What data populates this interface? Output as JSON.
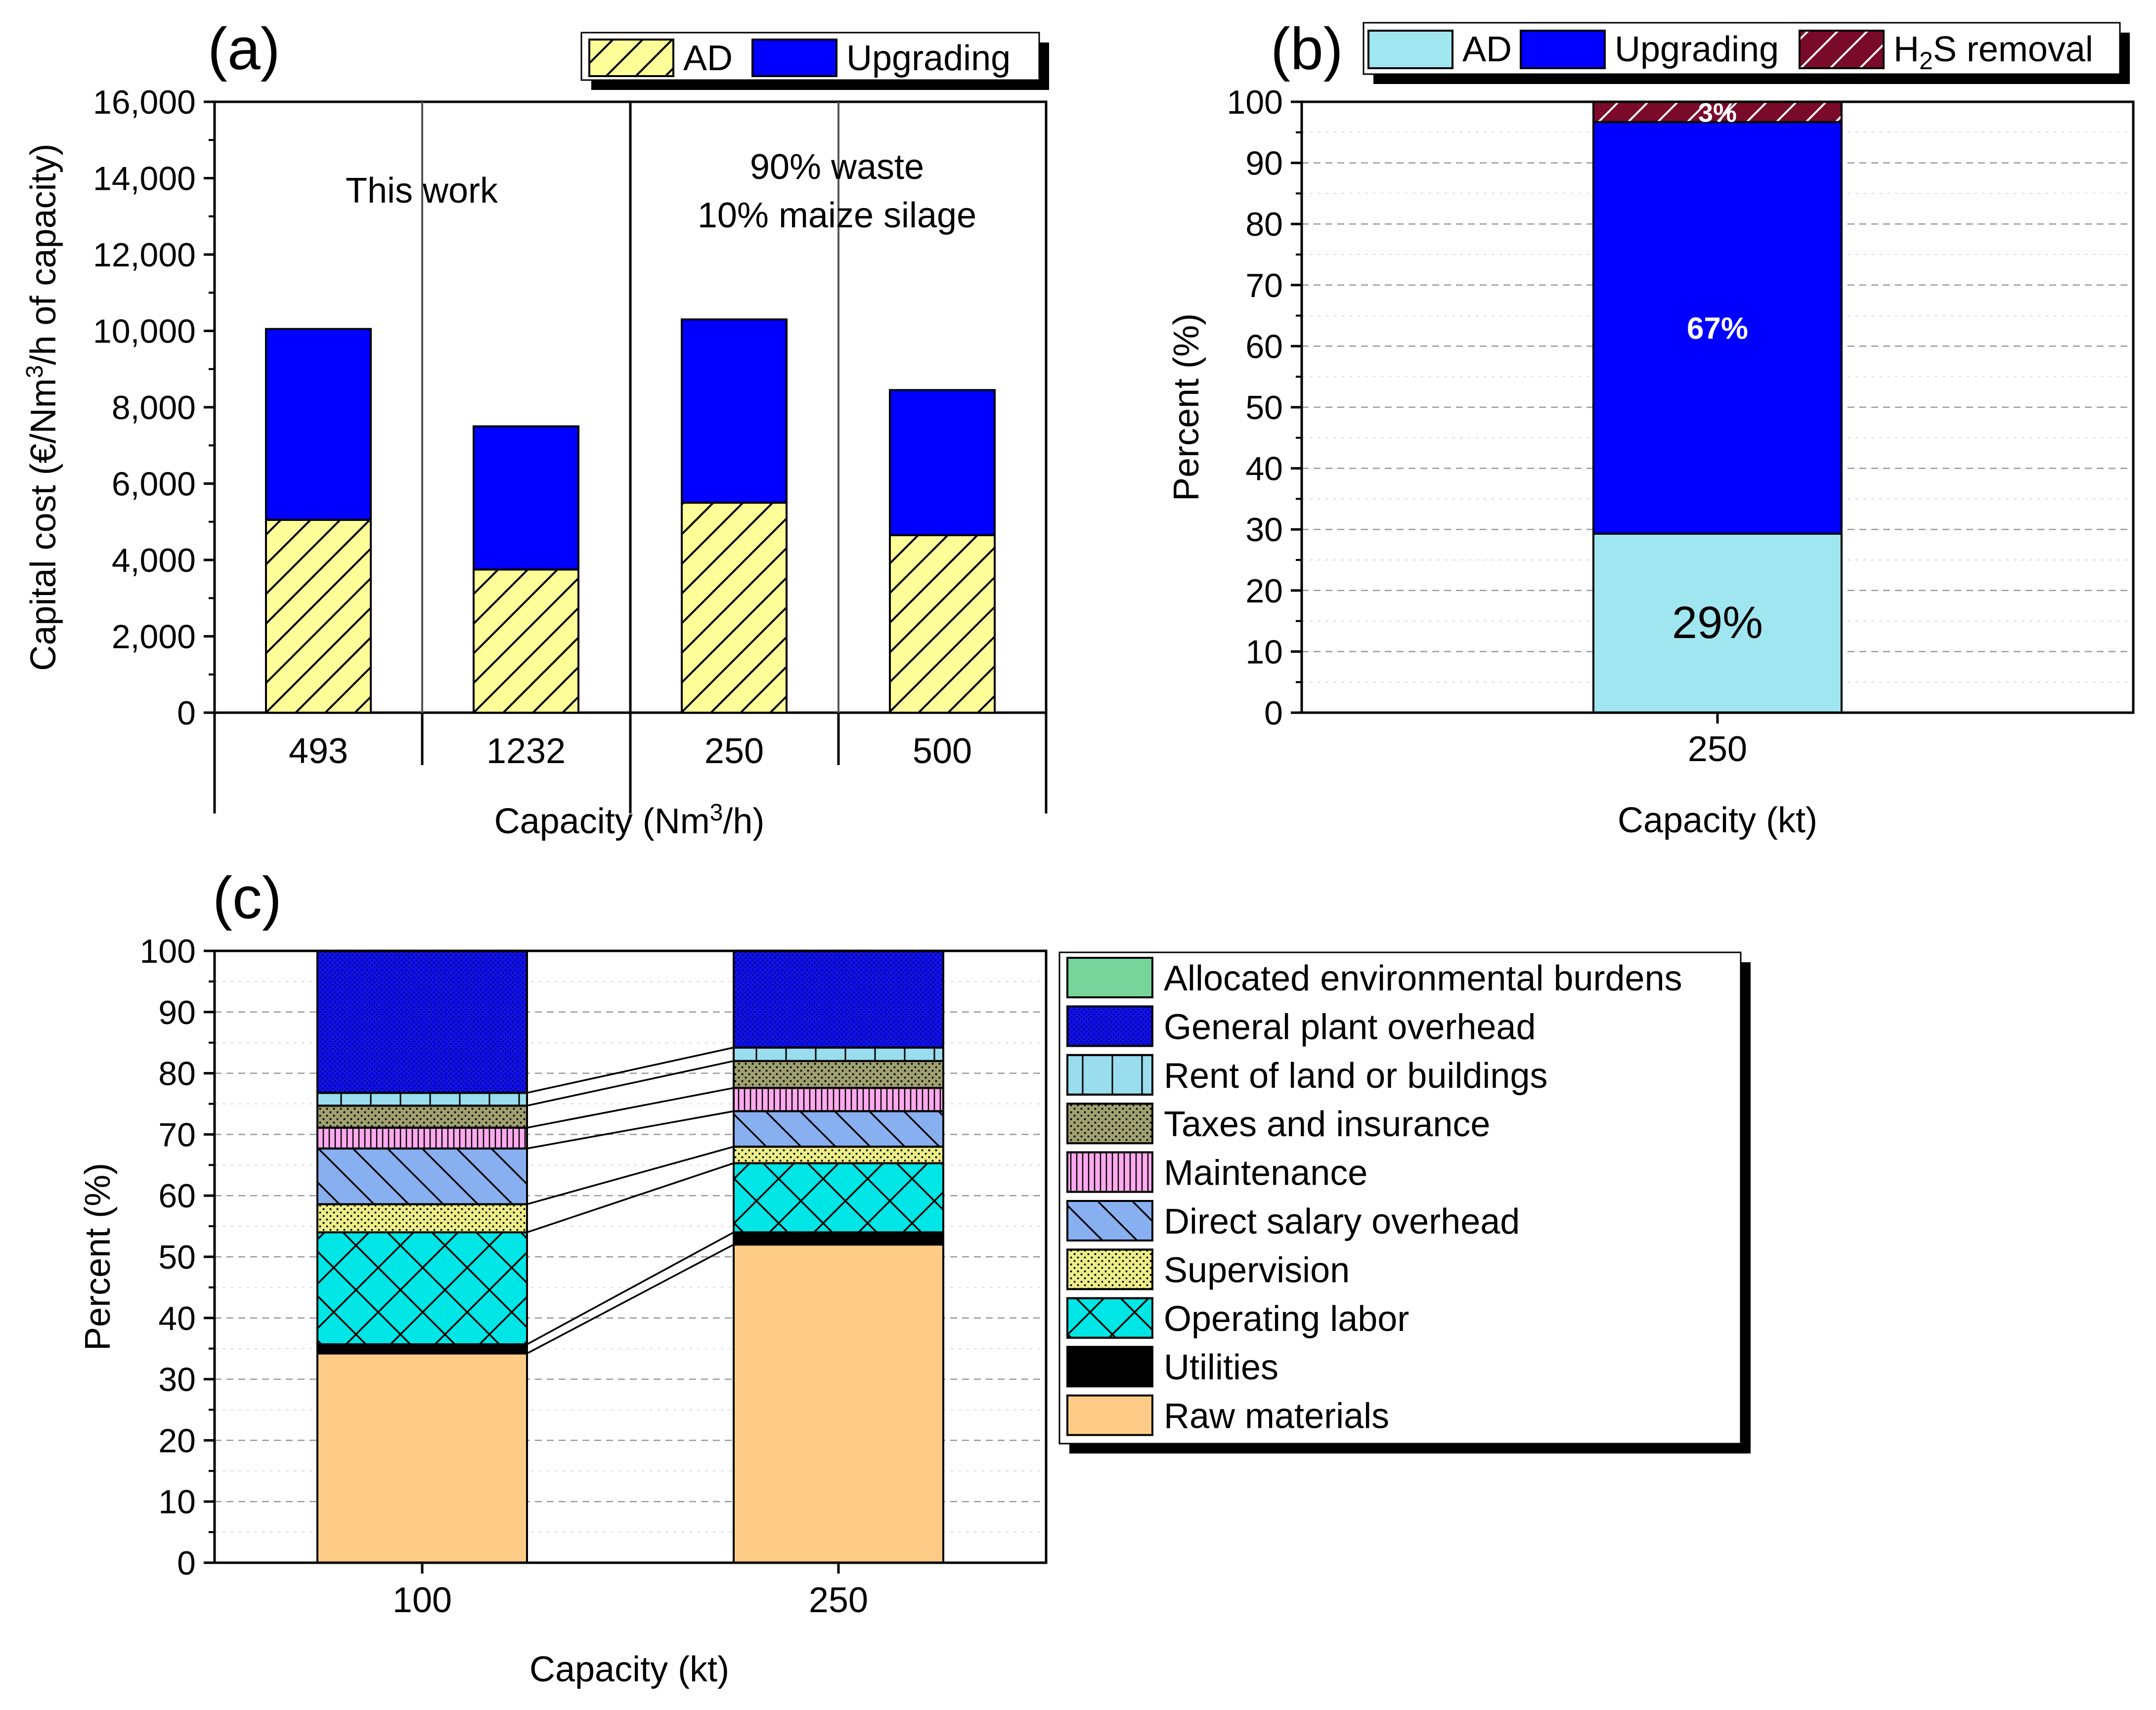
{
  "chart_data": [
    {
      "panel": "(a)",
      "type": "bar",
      "stacked": true,
      "categories": [
        "493",
        "1232",
        "250",
        "500"
      ],
      "series": [
        {
          "name": "AD",
          "values": [
            5050,
            3750,
            5500,
            4650
          ],
          "color": "#FFFF99",
          "pattern": "diagonal-hatch"
        },
        {
          "name": "Upgrading",
          "values": [
            5000,
            3750,
            4800,
            3800
          ],
          "color": "#0000FF"
        }
      ],
      "ylim": [
        0,
        16000
      ],
      "yticks": [
        "0",
        "2,000",
        "4,000",
        "6,000",
        "8,000",
        "10,000",
        "12,000",
        "14,000",
        "16,000"
      ],
      "ylabel_parts": [
        "Capital cost (€/Nm",
        "3",
        "/h of capacity)"
      ],
      "xlabel_parts": [
        "Capacity (Nm",
        "3",
        "/h)"
      ],
      "group_labels": [
        "This work",
        "90% waste",
        "10% maize silage"
      ],
      "legend_position": "top-right"
    },
    {
      "panel": "(b)",
      "type": "bar",
      "stacked": true,
      "categories": [
        "250"
      ],
      "series": [
        {
          "name": "AD",
          "values": [
            29.3
          ],
          "label": "29%",
          "color": "#A0E6F0"
        },
        {
          "name": "Upgrading",
          "values": [
            67.4
          ],
          "label": "67%",
          "color": "#0000FF"
        },
        {
          "name_parts": [
            "H",
            "2",
            "S removal"
          ],
          "values": [
            3.3
          ],
          "label": "3%",
          "color": "#7A0A2A",
          "pattern": "diagonal-hatch"
        }
      ],
      "ylim": [
        0,
        100
      ],
      "yticks": [
        "0",
        "10",
        "20",
        "30",
        "40",
        "50",
        "60",
        "70",
        "80",
        "90",
        "100"
      ],
      "ylabel": "Percent (%)",
      "xlabel": "Capacity (kt)",
      "legend_position": "top"
    },
    {
      "panel": "(c)",
      "type": "bar",
      "stacked": true,
      "categories": [
        "100",
        "250"
      ],
      "series": [
        {
          "name": "Raw materials",
          "values": [
            34.2,
            52.0
          ],
          "color": "#FFCC88"
        },
        {
          "name": "Utilities",
          "values": [
            1.5,
            2.0
          ],
          "color": "#000000"
        },
        {
          "name": "Operating labor",
          "values": [
            18.3,
            11.3
          ],
          "color": "#00E5E5",
          "pattern": "cross-hatch"
        },
        {
          "name": "Supervision",
          "values": [
            4.6,
            2.7
          ],
          "color": "#EEEE88",
          "pattern": "dots"
        },
        {
          "name": "Direct salary overhead",
          "values": [
            9.1,
            5.8
          ],
          "color": "#88B0F0",
          "pattern": "back-diagonal"
        },
        {
          "name": "Maintenance",
          "values": [
            3.4,
            3.8
          ],
          "color": "#FFAAEE",
          "pattern": "vertical-dense"
        },
        {
          "name": "Taxes and insurance",
          "values": [
            3.6,
            4.4
          ],
          "color": "#A0A070",
          "pattern": "dots"
        },
        {
          "name": "Rent of land or buildings",
          "values": [
            2.1,
            2.2
          ],
          "color": "#99DDEE",
          "pattern": "grid"
        },
        {
          "name": "General plant overhead",
          "values": [
            23.2,
            15.8
          ],
          "color": "#1010EE",
          "pattern": "dots-dense"
        },
        {
          "name": "Allocated environmental burdens",
          "values": [
            0.0,
            0.0
          ],
          "color": "#77D49A"
        }
      ],
      "ylim": [
        0,
        100
      ],
      "yticks": [
        "0",
        "10",
        "20",
        "30",
        "40",
        "50",
        "60",
        "70",
        "80",
        "90",
        "100"
      ],
      "ylabel": "Percent (%)",
      "xlabel": "Capacity (kt)",
      "legend_position": "right"
    }
  ]
}
